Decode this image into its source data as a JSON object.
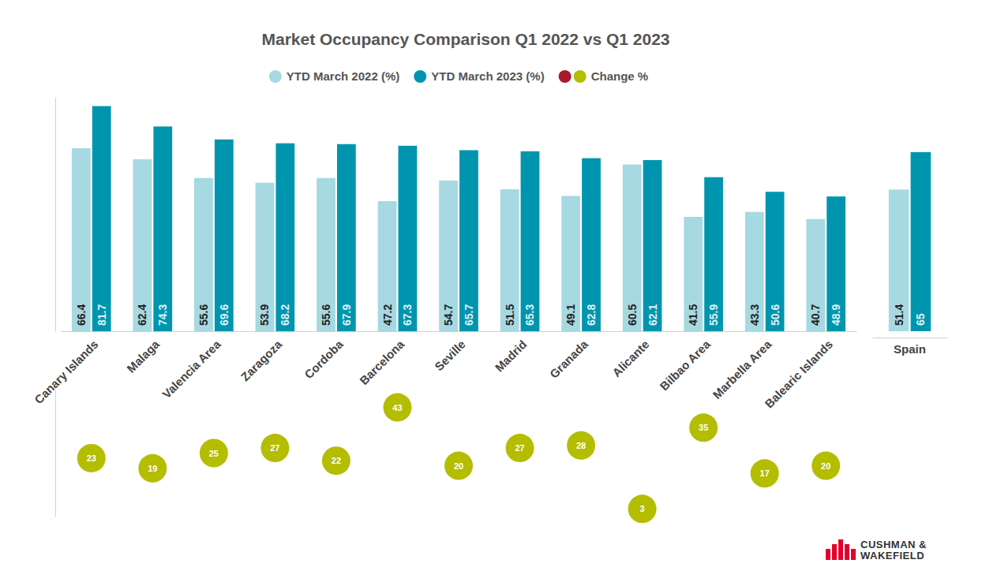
{
  "chart_data": {
    "type": "bar",
    "title": "Market Occupancy Comparison Q1 2022 vs Q1 2023",
    "categories": [
      "Canary Islands",
      "Malaga",
      "Valencia Area",
      "Zaragoza",
      "Cordoba",
      "Barcelona",
      "Seville",
      "Madrid",
      "Granada",
      "Alicante",
      "Bilbao Area",
      "Marbella Area",
      "Balearic Islands",
      "Spain"
    ],
    "series": [
      {
        "name": "YTD March 2022 (%)",
        "color": "#a6d9e1",
        "values": [
          66.4,
          62.4,
          55.6,
          53.9,
          55.6,
          47.2,
          54.7,
          51.5,
          49.1,
          60.5,
          41.5,
          43.3,
          40.7,
          51.4
        ]
      },
      {
        "name": "YTD March 2023 (%)",
        "color": "#0095ae",
        "values": [
          81.7,
          74.3,
          69.6,
          68.2,
          67.9,
          67.3,
          65.7,
          65.3,
          62.8,
          62.1,
          55.9,
          50.6,
          48.9,
          65
        ]
      },
      {
        "name": "Change %",
        "type": "scatter",
        "axis": "y2",
        "color": "#b4bd00",
        "values": [
          23,
          19,
          25,
          27,
          22,
          43,
          20,
          27,
          28,
          3,
          35,
          17,
          20,
          null
        ]
      }
    ],
    "ylim": [
      0,
      85
    ],
    "yticks": [],
    "y2lim": [
      0,
      50
    ],
    "y2ticks": [],
    "data_labels": true,
    "tick_labels": false,
    "grid": false,
    "legend": "top",
    "annotations": [
      "CUSHMAN &",
      "WAKEFIELD"
    ]
  }
}
